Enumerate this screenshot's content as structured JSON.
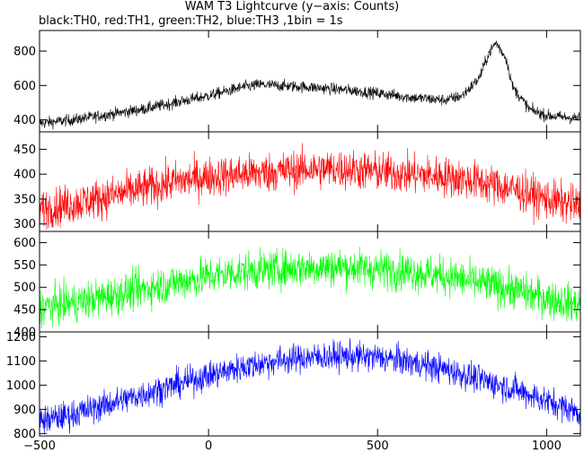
{
  "title": "WAM T3 Lightcurve (y−axis: Counts)",
  "subtitle": "black:TH0, red:TH1, green:TH2, blue:TH3 ,1bin = 1s",
  "chart_data": {
    "type": "line",
    "x_range": [
      -500,
      1100
    ],
    "x_ticks": [
      -500,
      0,
      500,
      1000
    ],
    "x_tick_labels": [
      "−500",
      "0",
      "500",
      "1000"
    ],
    "bin_seconds": 1,
    "panels": [
      {
        "series_name": "TH0",
        "color": "#000000",
        "ylim": [
          330,
          920
        ],
        "y_ticks": [
          400,
          600,
          800
        ],
        "x": [
          -500,
          -400,
          -300,
          -200,
          -100,
          0,
          100,
          150,
          200,
          300,
          400,
          500,
          600,
          700,
          750,
          800,
          830,
          850,
          880,
          900,
          950,
          1000,
          1050,
          1100
        ],
        "y": [
          380,
          400,
          430,
          460,
          500,
          540,
          590,
          605,
          600,
          590,
          575,
          555,
          530,
          515,
          540,
          640,
          790,
          850,
          760,
          590,
          460,
          425,
          415,
          410
        ],
        "noise": 24
      },
      {
        "series_name": "TH1",
        "color": "#ff0000",
        "ylim": [
          285,
          485
        ],
        "y_ticks": [
          300,
          350,
          400,
          450
        ],
        "x": [
          -500,
          -400,
          -300,
          -200,
          -100,
          0,
          100,
          200,
          300,
          400,
          500,
          600,
          700,
          800,
          900,
          1000,
          1100
        ],
        "y": [
          330,
          340,
          355,
          370,
          385,
          395,
          400,
          405,
          410,
          410,
          405,
          400,
          395,
          385,
          370,
          350,
          335
        ],
        "noise": 28
      },
      {
        "series_name": "TH2",
        "color": "#00ff00",
        "ylim": [
          400,
          625
        ],
        "y_ticks": [
          400,
          450,
          500,
          550,
          600
        ],
        "x": [
          -500,
          -400,
          -300,
          -200,
          -100,
          0,
          100,
          200,
          300,
          400,
          500,
          600,
          700,
          800,
          900,
          1000,
          1100
        ],
        "y": [
          455,
          465,
          480,
          495,
          510,
          525,
          535,
          540,
          545,
          545,
          540,
          535,
          525,
          510,
          495,
          475,
          460
        ],
        "noise": 30
      },
      {
        "series_name": "TH3",
        "color": "#0000ff",
        "ylim": [
          790,
          1220
        ],
        "y_ticks": [
          800,
          900,
          1000,
          1100,
          1200
        ],
        "x": [
          -500,
          -400,
          -300,
          -200,
          -100,
          0,
          100,
          200,
          300,
          400,
          500,
          600,
          700,
          800,
          900,
          1000,
          1100
        ],
        "y": [
          850,
          880,
          920,
          960,
          1000,
          1040,
          1075,
          1100,
          1115,
          1120,
          1115,
          1095,
          1065,
          1025,
          985,
          935,
          885
        ],
        "noise": 42
      }
    ]
  }
}
